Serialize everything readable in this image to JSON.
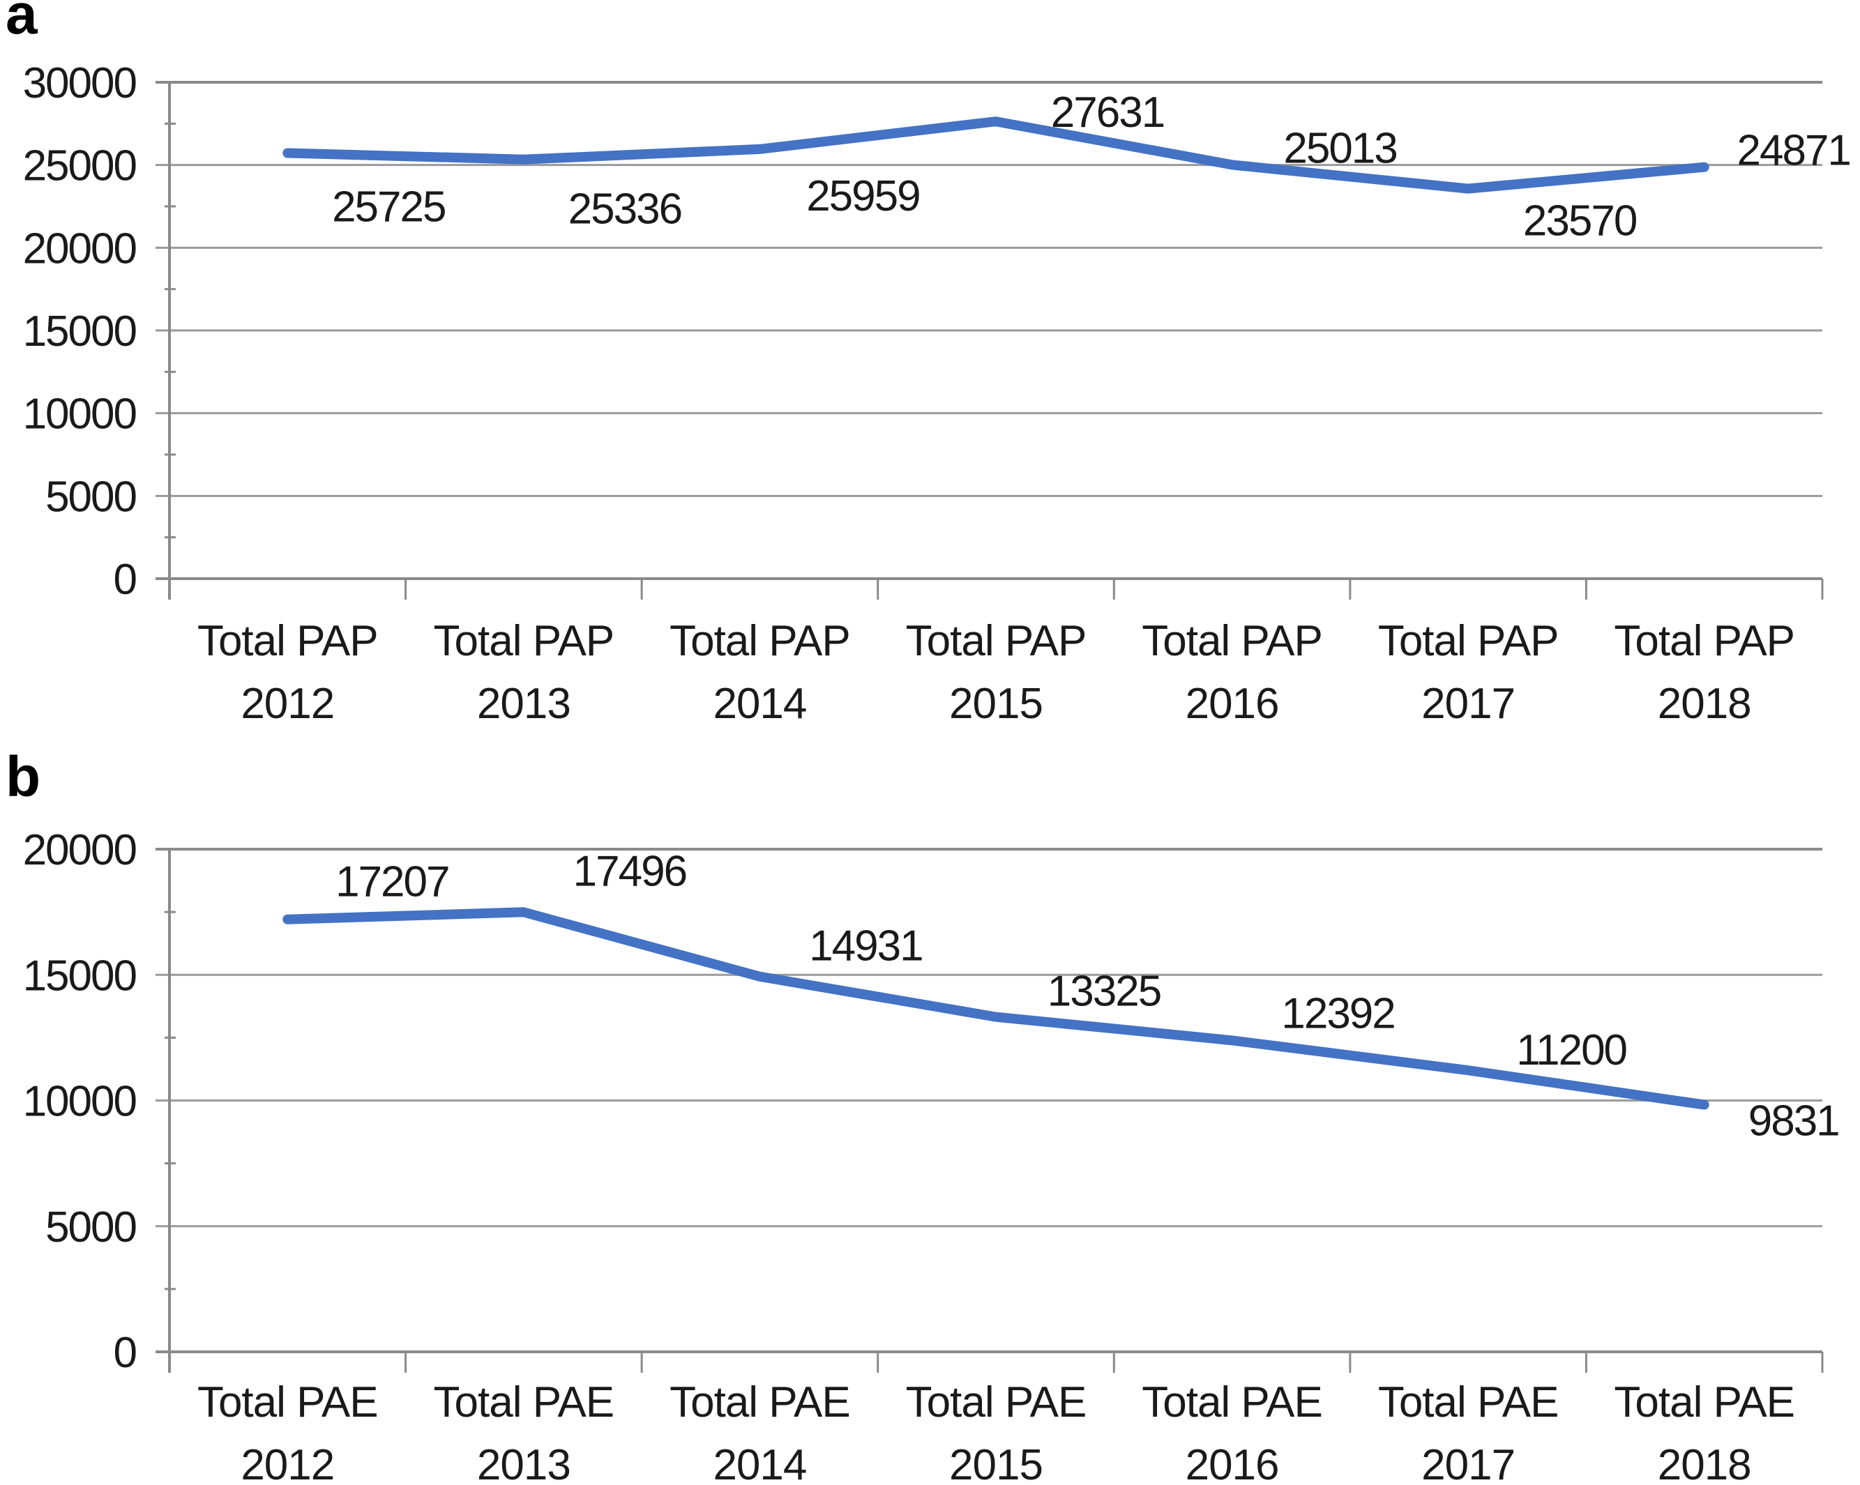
{
  "figure": {
    "panel_letters": [
      "a",
      "b"
    ],
    "background_color": "#ffffff"
  },
  "chart_data": [
    {
      "type": "line",
      "panel_label": "a",
      "categories": [
        "Total PAP 2012",
        "Total PAP 2013",
        "Total PAP 2014",
        "Total PAP 2015",
        "Total PAP 2016",
        "Total PAP 2017",
        "Total PAP 2018"
      ],
      "series": [
        {
          "name": "Total PAP",
          "values": [
            25725,
            25336,
            25959,
            27631,
            25013,
            23570,
            24871
          ]
        }
      ],
      "data_labels": [
        "25725",
        "25336",
        "25959",
        "27631",
        "25013",
        "23570",
        "24871"
      ],
      "y_ticks": [
        30000,
        25000,
        20000,
        15000,
        10000,
        5000,
        0
      ],
      "ylim": [
        0,
        30000
      ],
      "grid": true,
      "legend": "none",
      "title": "",
      "xlabel": "",
      "ylabel": "",
      "line_color": "#4472C4",
      "grid_color": "#9a9a9a",
      "axis_color": "#8a8a8a",
      "text_color": "#1a1a1a"
    },
    {
      "type": "line",
      "panel_label": "b",
      "categories": [
        "Total PAE 2012",
        "Total PAE 2013",
        "Total PAE 2014",
        "Total PAE 2015",
        "Total PAE 2016",
        "Total PAE 2017",
        "Total PAE 2018"
      ],
      "series": [
        {
          "name": "Total PAE",
          "values": [
            17207,
            17496,
            14931,
            13325,
            12392,
            11200,
            9831
          ]
        }
      ],
      "data_labels": [
        "17207",
        "17496",
        "14931",
        "13325",
        "12392",
        "11200",
        "9831"
      ],
      "y_ticks": [
        20000,
        15000,
        10000,
        5000,
        0
      ],
      "ylim": [
        0,
        20000
      ],
      "grid": true,
      "legend": "none",
      "title": "",
      "xlabel": "",
      "ylabel": "",
      "line_color": "#4472C4",
      "grid_color": "#9a9a9a",
      "axis_color": "#8a8a8a",
      "text_color": "#1a1a1a"
    }
  ]
}
